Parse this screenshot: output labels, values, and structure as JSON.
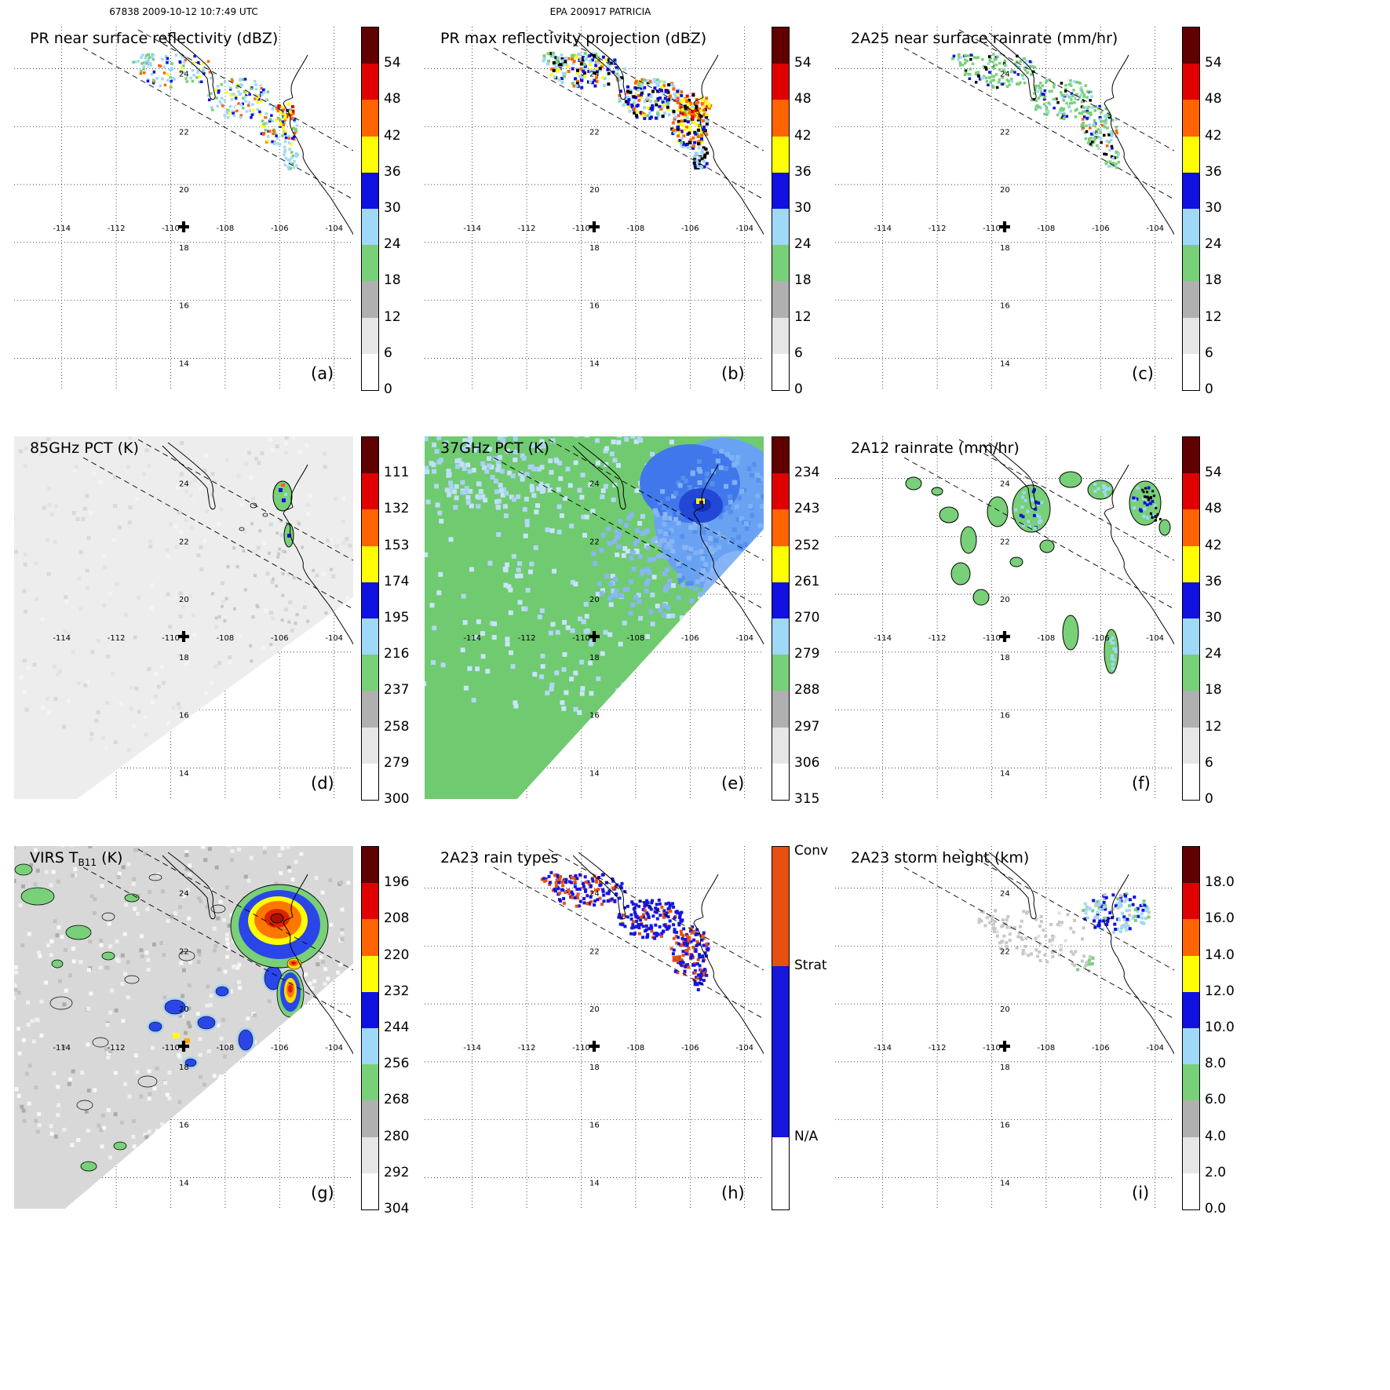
{
  "header": {
    "left": "67838 2009-10-12 10:7:49 UTC",
    "center": "EPA 200917 PATRICIA"
  },
  "map": {
    "lon_labels": [
      "-114",
      "-112",
      "-110",
      "-108",
      "-106",
      "-104"
    ],
    "lat_labels": [
      "14",
      "16",
      "18",
      "20",
      "22",
      "24"
    ]
  },
  "palette": {
    "scale_bottom_to_top": [
      "#ffffff",
      "#e6e6e6",
      "#b0b0b0",
      "#78d078",
      "#a0d8f8",
      "#1010e0",
      "#ffff00",
      "#ff6400",
      "#e00000",
      "#600000"
    ],
    "conv": "#e8500f",
    "strat": "#1616dd"
  },
  "panels": [
    {
      "letter": "(a)",
      "title": "PR near surface reflectivity (dBZ)",
      "field": "pr_nsr",
      "colorbar": {
        "type": "scale",
        "ticks": [
          "54",
          "48",
          "42",
          "36",
          "30",
          "24",
          "18",
          "12",
          "6",
          "0"
        ]
      }
    },
    {
      "letter": "(b)",
      "title": "PR max reflectivity projection (dBZ)",
      "field": "pr_max",
      "colorbar": {
        "type": "scale",
        "ticks": [
          "54",
          "48",
          "42",
          "36",
          "30",
          "24",
          "18",
          "12",
          "6",
          "0"
        ]
      }
    },
    {
      "letter": "(c)",
      "title": "2A25 near surface rainrate (mm/hr)",
      "field": "rr_2a25",
      "colorbar": {
        "type": "scale",
        "ticks": [
          "54",
          "48",
          "42",
          "36",
          "30",
          "24",
          "18",
          "12",
          "6",
          "0"
        ]
      }
    },
    {
      "letter": "(d)",
      "title": "85GHz PCT (K)",
      "field": "pct85",
      "colorbar": {
        "type": "scale",
        "ticks": [
          "111",
          "132",
          "153",
          "174",
          "195",
          "216",
          "237",
          "258",
          "279",
          "300"
        ]
      }
    },
    {
      "letter": "(e)",
      "title": "37GHz PCT (K)",
      "field": "pct37",
      "colorbar": {
        "type": "scale",
        "ticks": [
          "234",
          "243",
          "252",
          "261",
          "270",
          "279",
          "288",
          "297",
          "306",
          "315"
        ]
      }
    },
    {
      "letter": "(f)",
      "title": "2A12 rainrate (mm/hr)",
      "field": "rr_2a12",
      "colorbar": {
        "type": "scale",
        "ticks": [
          "54",
          "48",
          "42",
          "36",
          "30",
          "24",
          "18",
          "12",
          "6",
          "0"
        ]
      }
    },
    {
      "letter": "(g)",
      "title": "VIRS T",
      "title_sub": "B11",
      "title_suffix": " (K)",
      "field": "virs",
      "colorbar": {
        "type": "scale",
        "ticks": [
          "196",
          "208",
          "220",
          "232",
          "244",
          "256",
          "268",
          "280",
          "292",
          "304"
        ]
      }
    },
    {
      "letter": "(h)",
      "title": "2A23 rain types",
      "field": "raintype",
      "colorbar": {
        "type": "raintype",
        "labels": [
          "Conv",
          "Strat",
          "N/A"
        ]
      }
    },
    {
      "letter": "(i)",
      "title": "2A23 storm height (km)",
      "field": "stormh",
      "colorbar": {
        "type": "scale",
        "ticks": [
          "18.0",
          "16.0",
          "14.0",
          "12.0",
          "10.0",
          "8.0",
          "6.0",
          "4.0",
          "2.0",
          "0.0"
        ]
      }
    }
  ],
  "chart_data": [
    {
      "type": "heatmap",
      "panel": "(a)",
      "title": "PR near surface reflectivity (dBZ)",
      "units": "dBZ",
      "scale_ticks": [
        0,
        6,
        12,
        18,
        24,
        30,
        36,
        42,
        48,
        54
      ],
      "lon_range": [
        -115.7,
        -103.3
      ],
      "lat_range": [
        12.9,
        25.4
      ]
    },
    {
      "type": "heatmap",
      "panel": "(b)",
      "title": "PR max reflectivity projection (dBZ)",
      "units": "dBZ",
      "scale_ticks": [
        0,
        6,
        12,
        18,
        24,
        30,
        36,
        42,
        48,
        54
      ],
      "lon_range": [
        -115.7,
        -103.3
      ],
      "lat_range": [
        12.9,
        25.4
      ]
    },
    {
      "type": "heatmap",
      "panel": "(c)",
      "title": "2A25 near surface rainrate (mm/hr)",
      "units": "mm/hr",
      "scale_ticks": [
        0,
        6,
        12,
        18,
        24,
        30,
        36,
        42,
        48,
        54
      ],
      "lon_range": [
        -115.7,
        -103.3
      ],
      "lat_range": [
        12.9,
        25.4
      ]
    },
    {
      "type": "heatmap",
      "panel": "(d)",
      "title": "85GHz PCT (K)",
      "units": "K",
      "scale_ticks": [
        111,
        132,
        153,
        174,
        195,
        216,
        237,
        258,
        279,
        300
      ],
      "lon_range": [
        -115.7,
        -103.3
      ],
      "lat_range": [
        12.9,
        25.4
      ]
    },
    {
      "type": "heatmap",
      "panel": "(e)",
      "title": "37GHz PCT (K)",
      "units": "K",
      "scale_ticks": [
        234,
        243,
        252,
        261,
        270,
        279,
        288,
        297,
        306,
        315
      ],
      "lon_range": [
        -115.7,
        -103.3
      ],
      "lat_range": [
        12.9,
        25.4
      ]
    },
    {
      "type": "heatmap",
      "panel": "(f)",
      "title": "2A12 rainrate (mm/hr)",
      "units": "mm/hr",
      "scale_ticks": [
        0,
        6,
        12,
        18,
        24,
        30,
        36,
        42,
        48,
        54
      ],
      "lon_range": [
        -115.7,
        -103.3
      ],
      "lat_range": [
        12.9,
        25.4
      ]
    },
    {
      "type": "heatmap",
      "panel": "(g)",
      "title": "VIRS TB11 (K)",
      "units": "K",
      "scale_ticks": [
        196,
        208,
        220,
        232,
        244,
        256,
        268,
        280,
        292,
        304
      ],
      "lon_range": [
        -115.7,
        -103.3
      ],
      "lat_range": [
        12.9,
        25.4
      ]
    },
    {
      "type": "heatmap",
      "panel": "(h)",
      "title": "2A23 rain types",
      "units": "category",
      "categories": [
        "Conv",
        "Strat",
        "N/A"
      ],
      "lon_range": [
        -115.7,
        -103.3
      ],
      "lat_range": [
        12.9,
        25.4
      ]
    },
    {
      "type": "heatmap",
      "panel": "(i)",
      "title": "2A23 storm height (km)",
      "units": "km",
      "scale_ticks": [
        0,
        2,
        4,
        6,
        8,
        10,
        12,
        14,
        16,
        18
      ],
      "lon_range": [
        -115.7,
        -103.3
      ],
      "lat_range": [
        12.9,
        25.4
      ]
    }
  ]
}
